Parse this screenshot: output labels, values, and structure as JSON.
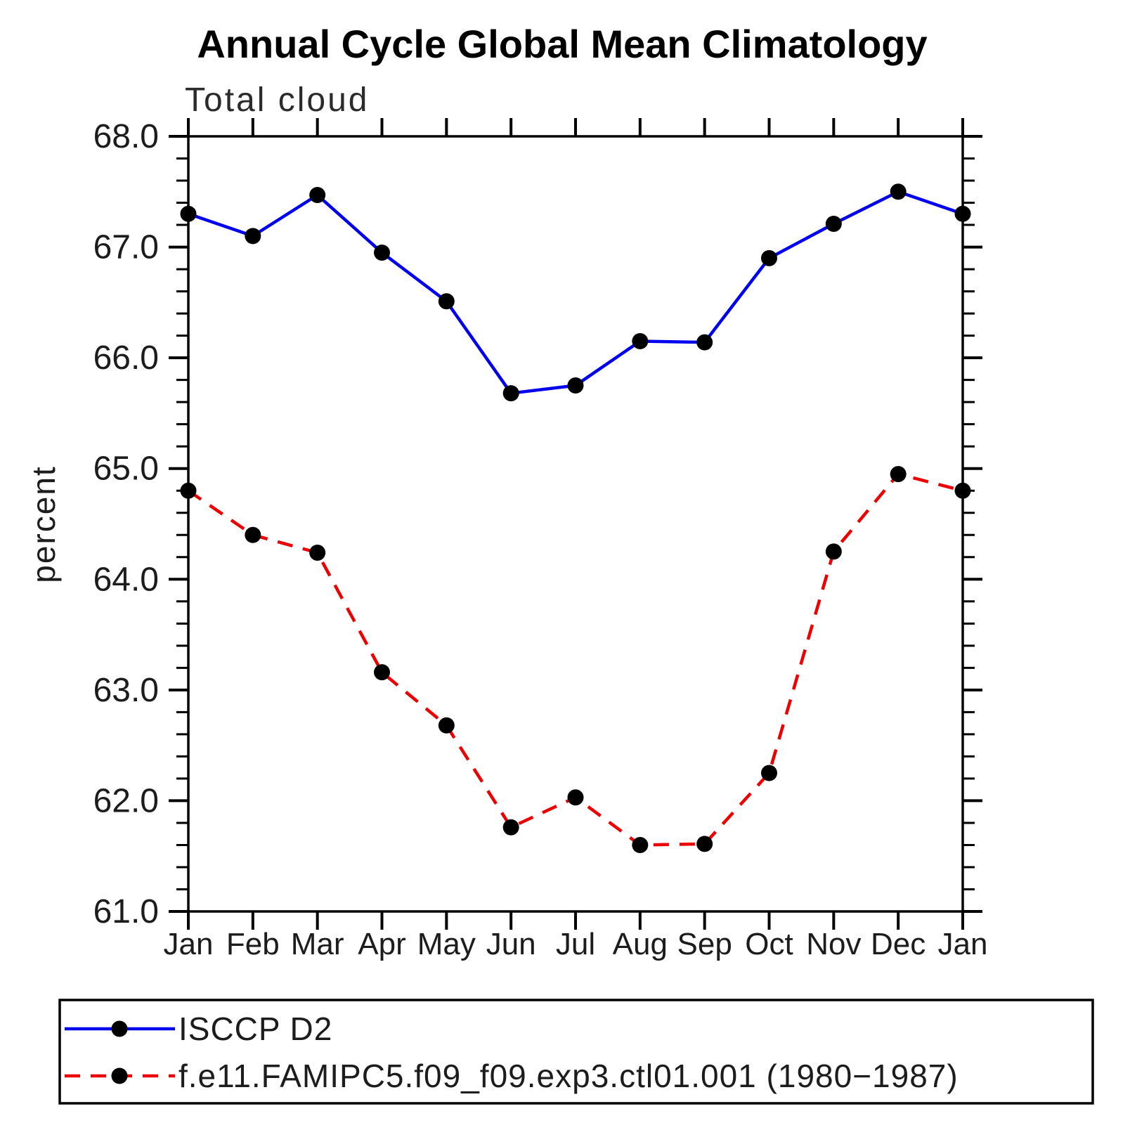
{
  "title": "Annual Cycle Global Mean Climatology",
  "subtitle": "Total cloud",
  "ylabel": "percent",
  "chart_data": {
    "type": "line",
    "x_categories": [
      "Jan",
      "Feb",
      "Mar",
      "Apr",
      "May",
      "Jun",
      "Jul",
      "Aug",
      "Sep",
      "Oct",
      "Nov",
      "Dec",
      "Jan"
    ],
    "ylim": [
      61.0,
      68.0
    ],
    "ytick_major_values": [
      61,
      62,
      63,
      64,
      65,
      66,
      67,
      68
    ],
    "ytick_labels": [
      "61.0",
      "62.0",
      "63.0",
      "64.0",
      "65.0",
      "66.0",
      "67.0",
      "68.0"
    ],
    "ytick_minor_step": 0.2,
    "grid": "off",
    "legend_position": "bottom-box",
    "marker_color": "#000000",
    "series": [
      {
        "name": "ISCCP D2",
        "color": "#0000ee",
        "style": "solid",
        "values": [
          67.3,
          67.1,
          67.47,
          66.95,
          66.51,
          65.68,
          65.75,
          66.15,
          66.14,
          66.9,
          67.21,
          67.5,
          67.3
        ]
      },
      {
        "name": "f.e11.FAMIPC5.f09_f09.exp3.ctl01.001 (1980−1987)",
        "color": "#ee0000",
        "style": "dashed",
        "values": [
          64.8,
          64.4,
          64.24,
          63.16,
          62.68,
          61.76,
          62.03,
          61.6,
          61.61,
          62.25,
          64.25,
          64.95,
          64.8
        ]
      }
    ]
  }
}
